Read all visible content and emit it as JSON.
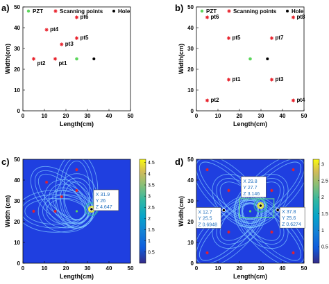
{
  "colors": {
    "pzt": "#5cd65c",
    "scan": "#e8202a",
    "hole": "#000000",
    "field_bg": "#1f3fe0",
    "ring": "#7fc8ff",
    "tip_text": "#1f6fbf"
  },
  "chart_data": [
    {
      "panel": "a)",
      "type": "scatter",
      "xlabel": "Length(cm)",
      "ylabel": "Width(cm)",
      "xlim": [
        0,
        50
      ],
      "ylim": [
        0,
        50
      ],
      "xticks": [
        "0",
        "10",
        "20",
        "30",
        "40",
        "50"
      ],
      "yticks": [
        "0",
        "10",
        "20",
        "30",
        "40",
        "50"
      ],
      "legend": [
        "PZT",
        "Scanning points",
        "Hole"
      ],
      "pzt": [
        25,
        25
      ],
      "hole": [
        33,
        25
      ],
      "points": [
        {
          "label": "pt1",
          "x": 15,
          "y": 25
        },
        {
          "label": "pt2",
          "x": 5,
          "y": 25
        },
        {
          "label": "pt3",
          "x": 18,
          "y": 32
        },
        {
          "label": "pt4",
          "x": 11,
          "y": 39
        },
        {
          "label": "pt5",
          "x": 25,
          "y": 35
        },
        {
          "label": "pt6",
          "x": 25,
          "y": 45
        }
      ]
    },
    {
      "panel": "b)",
      "type": "scatter",
      "xlabel": "Length(cm)",
      "ylabel": "Width(cm)",
      "xlim": [
        0,
        50
      ],
      "ylim": [
        0,
        50
      ],
      "xticks": [
        "0",
        "10",
        "20",
        "30",
        "40",
        "50"
      ],
      "yticks": [
        "0",
        "10",
        "20",
        "30",
        "40",
        "50"
      ],
      "legend": [
        "PZT",
        "Scanning points",
        "Hole"
      ],
      "pzt": [
        25,
        25
      ],
      "hole": [
        33,
        25
      ],
      "points": [
        {
          "label": "pt1",
          "x": 15,
          "y": 15
        },
        {
          "label": "pt2",
          "x": 5,
          "y": 5
        },
        {
          "label": "pt3",
          "x": 35,
          "y": 15
        },
        {
          "label": "pt4",
          "x": 45,
          "y": 5
        },
        {
          "label": "pt5",
          "x": 15,
          "y": 35
        },
        {
          "label": "pt6",
          "x": 5,
          "y": 45
        },
        {
          "label": "pt7",
          "x": 35,
          "y": 35
        },
        {
          "label": "pt8",
          "x": 45,
          "y": 45
        }
      ]
    },
    {
      "panel": "c)",
      "type": "heatmap",
      "xlabel": "Length(cm)",
      "ylabel": "Width (cm)",
      "xlim": [
        0,
        50
      ],
      "ylim": [
        0,
        50
      ],
      "xticks": [
        "0",
        "10",
        "20",
        "30",
        "40",
        "50"
      ],
      "yticks": [
        "0",
        "10",
        "20",
        "30",
        "40",
        "50"
      ],
      "colorbar": {
        "min": 0,
        "max": 4.647,
        "ticks": [
          "0.5",
          "1",
          "1.5",
          "2",
          "2.5",
          "3",
          "3.5",
          "4",
          "4.5"
        ]
      },
      "scan_points": [
        [
          15,
          25
        ],
        [
          5,
          25
        ],
        [
          18,
          32
        ],
        [
          11,
          39
        ],
        [
          25,
          35
        ],
        [
          25,
          45
        ]
      ],
      "pzt": [
        25,
        25
      ],
      "datatips": [
        {
          "X": "31.9",
          "Y": "26",
          "Z": "4.647",
          "x": 31.9,
          "y": 26
        }
      ]
    },
    {
      "panel": "d)",
      "type": "heatmap",
      "xlabel": "Length(cm)",
      "ylabel": "Width(cm)",
      "xlim": [
        0,
        50
      ],
      "ylim": [
        0,
        50
      ],
      "xticks": [
        "0",
        "10",
        "20",
        "30",
        "40",
        "50"
      ],
      "yticks": [
        "0",
        "10",
        "20",
        "30",
        "40",
        "50"
      ],
      "colorbar": {
        "min": 0,
        "max": 3.146,
        "ticks": [
          "0.5",
          "1",
          "1.5",
          "2",
          "2.5",
          "3"
        ]
      },
      "scan_points": [
        [
          15,
          15
        ],
        [
          5,
          5
        ],
        [
          35,
          15
        ],
        [
          45,
          5
        ],
        [
          15,
          35
        ],
        [
          5,
          45
        ],
        [
          35,
          35
        ],
        [
          45,
          45
        ]
      ],
      "pzt": [
        25,
        25
      ],
      "datatips": [
        {
          "X": "29.8",
          "Y": "27.7",
          "Z": "3.146",
          "x": 29.8,
          "y": 27.7
        },
        {
          "X": "12.7",
          "Y": "25.5",
          "Z": "0.6948",
          "x": 12.7,
          "y": 25.5
        },
        {
          "X": "37.8",
          "Y": "25.6",
          "Z": "0.6274",
          "x": 37.8,
          "y": 25.6
        }
      ]
    }
  ]
}
